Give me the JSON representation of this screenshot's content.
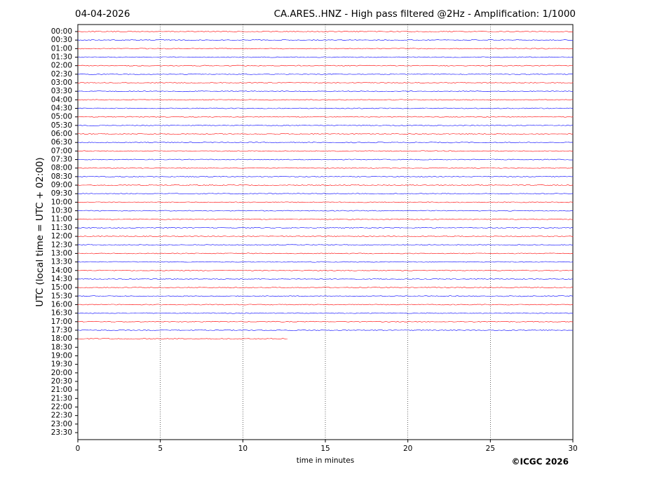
{
  "chart_data": {
    "type": "helicorder",
    "date": "04-04-2026",
    "title": "CA.ARES..HNZ - High pass filtered @2Hz - Amplification: 1/1000",
    "x_label": "time in minutes",
    "y_label": "UTC (local time = UTC + 02:00)",
    "copyright": "©ICGC 2026",
    "categories": [
      "00:00",
      "00:30",
      "01:00",
      "01:30",
      "02:00",
      "02:30",
      "03:00",
      "03:30",
      "04:00",
      "04:30",
      "05:00",
      "05:30",
      "06:00",
      "06:30",
      "07:00",
      "07:30",
      "08:00",
      "08:30",
      "09:00",
      "09:30",
      "10:00",
      "10:30",
      "11:00",
      "11:30",
      "12:00",
      "12:30",
      "13:00",
      "13:30",
      "14:00",
      "14:30",
      "15:00",
      "15:30",
      "16:00",
      "16:30",
      "17:00",
      "17:30",
      "18:00",
      "18:30",
      "19:00",
      "19:30",
      "20:00",
      "20:30",
      "21:00",
      "21:30",
      "22:00",
      "22:30",
      "23:00",
      "23:30"
    ],
    "trace_end": [
      30,
      30,
      30,
      30,
      30,
      30,
      30,
      30,
      30,
      30,
      30,
      30,
      30,
      30,
      30,
      30,
      30,
      30,
      30,
      30,
      30,
      30,
      30,
      30,
      30,
      30,
      30,
      30,
      30,
      30,
      30,
      30,
      30,
      30,
      30,
      30,
      12.7,
      null,
      null,
      null,
      null,
      null,
      null,
      null,
      null,
      null,
      null,
      null
    ],
    "colors": [
      "#ff0000",
      "#0000ff"
    ],
    "xlim": [
      0,
      30
    ],
    "xticks": [
      0,
      5,
      10,
      15,
      20,
      25,
      30
    ],
    "grid": true
  }
}
